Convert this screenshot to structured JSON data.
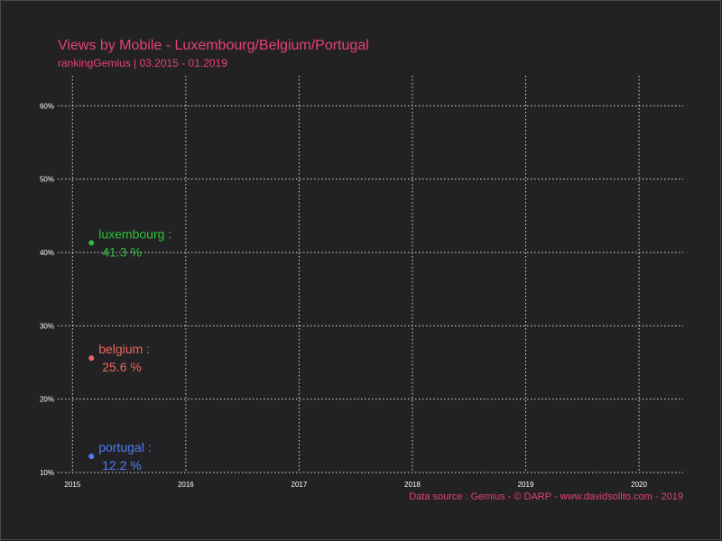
{
  "chart_data": {
    "type": "scatter",
    "title": "Views by Mobile - Luxembourg/Belgium/Portugal",
    "subtitle": "rankingGemius | 03.2015 - 01.2019",
    "xlabel": "",
    "ylabel": "",
    "x_ticks": [
      "2015",
      "2016",
      "2017",
      "2018",
      "2019",
      "2020"
    ],
    "y_ticks": [
      "10%",
      "20%",
      "30%",
      "40%",
      "50%",
      "60%"
    ],
    "xlim": [
      2015,
      2020
    ],
    "ylim": [
      10,
      60
    ],
    "grid": true,
    "series": [
      {
        "name": "luxembourg :",
        "x": "2015-03",
        "value": 41.3,
        "value_label": "41.3 %",
        "color": "#2dc03a"
      },
      {
        "name": "belgium :",
        "x": "2015-03",
        "value": 25.6,
        "value_label": "25.6 %",
        "color": "#f0655a"
      },
      {
        "name": "portugal :",
        "x": "2015-03",
        "value": 12.2,
        "value_label": "12.2 %",
        "color": "#4d7df5"
      }
    ],
    "source": "Data source : Gemius - © DARP - www.davidsolito.com - 2019"
  }
}
